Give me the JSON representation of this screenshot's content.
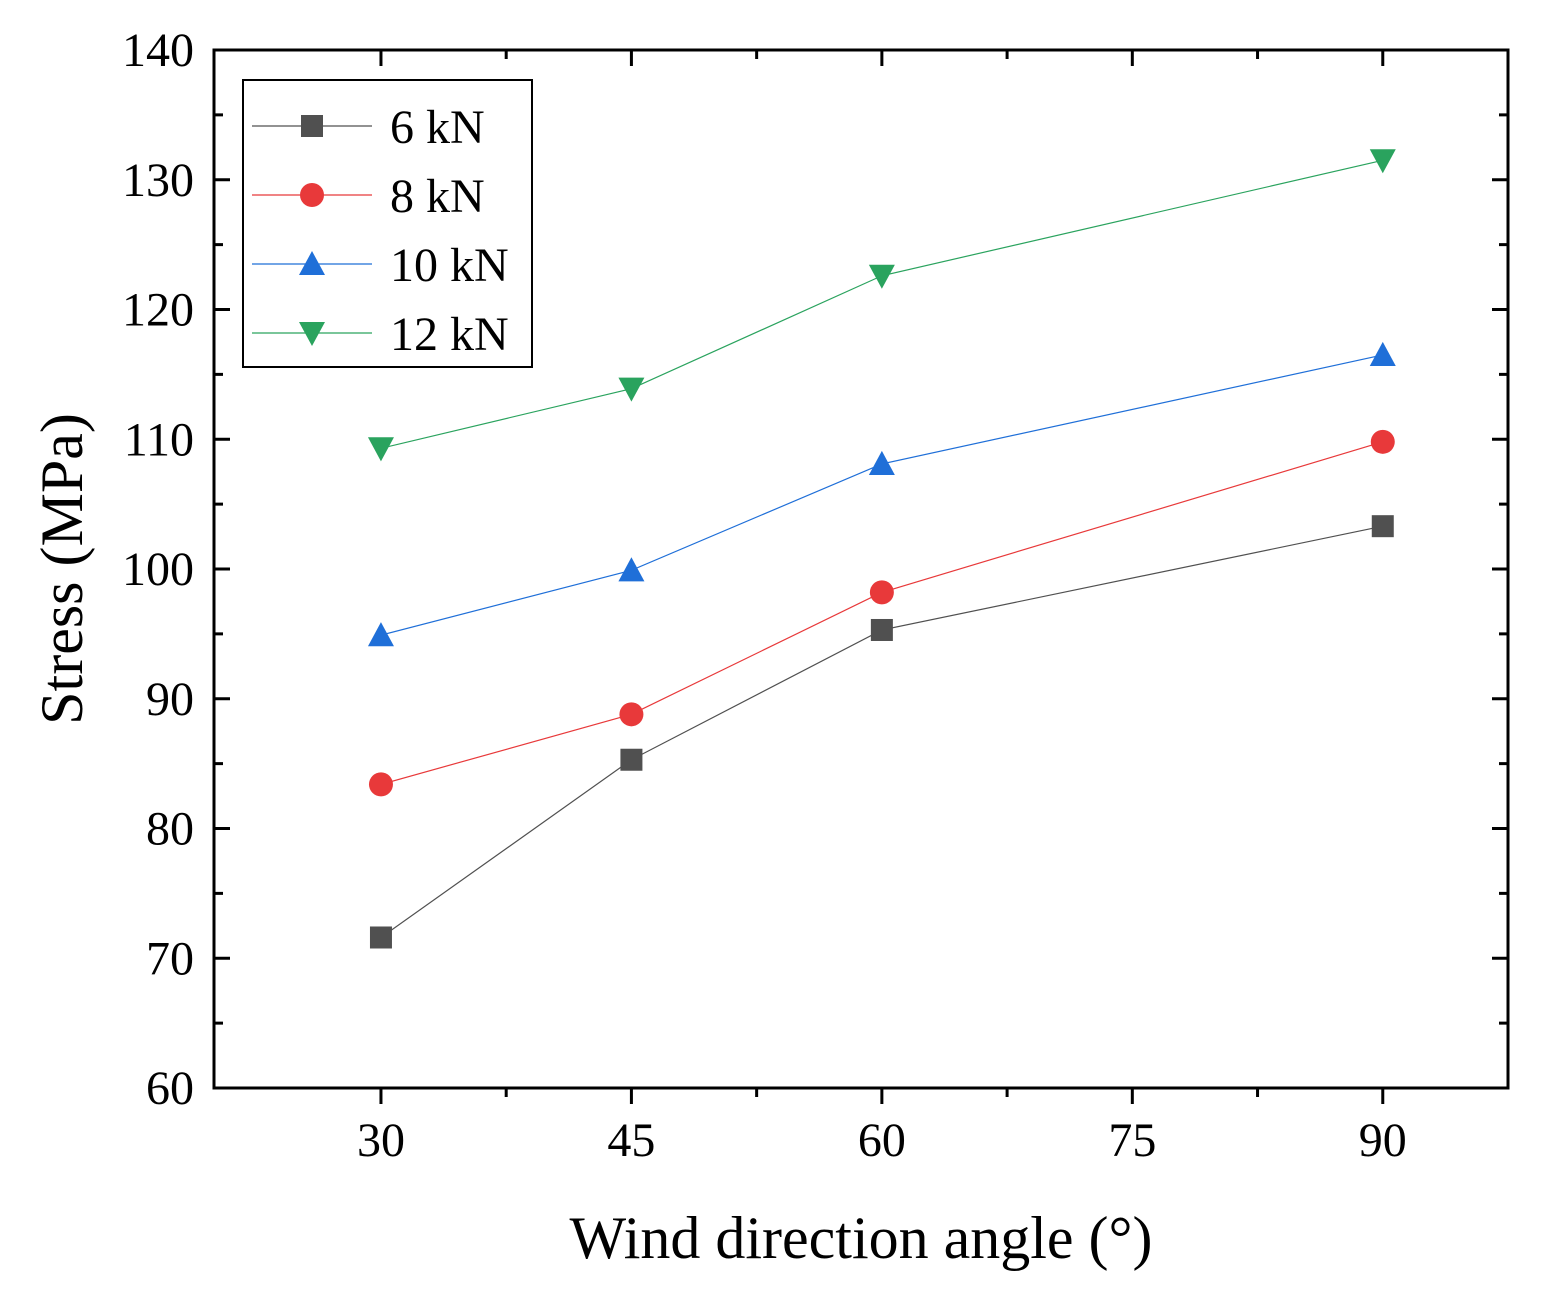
{
  "chart_data": {
    "type": "line",
    "title": "",
    "xlabel": "Wind direction angle (°)",
    "ylabel": "Stress (MPa)",
    "xlim": [
      20,
      97.5
    ],
    "ylim": [
      60,
      140
    ],
    "xticks": [
      30,
      45,
      60,
      75,
      90
    ],
    "yticks": [
      60,
      70,
      80,
      90,
      100,
      110,
      120,
      130,
      140
    ],
    "x": [
      30,
      45,
      60,
      90
    ],
    "legend_position": "top-left",
    "series": [
      {
        "name": "6 kN",
        "values": [
          71.6,
          85.3,
          95.3,
          103.3
        ],
        "color": "#505050",
        "marker": "square"
      },
      {
        "name": "8 kN",
        "values": [
          83.4,
          88.8,
          98.2,
          109.8
        ],
        "color": "#e8393a",
        "marker": "circle"
      },
      {
        "name": "10 kN",
        "values": [
          94.9,
          99.9,
          108.1,
          116.5
        ],
        "color": "#1f6fd8",
        "marker": "triangle-up"
      },
      {
        "name": "12 kN",
        "values": [
          109.3,
          113.9,
          122.6,
          131.5
        ],
        "color": "#2aa35e",
        "marker": "triangle-down"
      }
    ]
  }
}
